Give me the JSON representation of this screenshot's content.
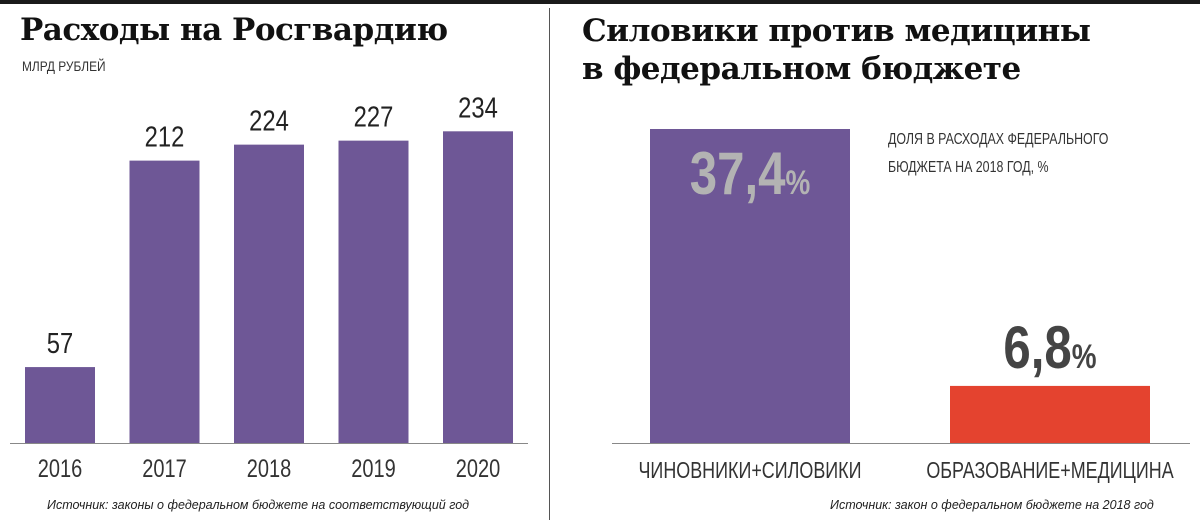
{
  "left": {
    "title": "Расходы на Росгвардию",
    "subtitle": "МЛРД РУБЛЕЙ",
    "source": "Источник: законы о федеральном бюджете на соответствующий год"
  },
  "right": {
    "title_line1": "Силовики против медицины",
    "title_line2": "в федеральном бюджете",
    "note_line1": "ДОЛЯ В РАСХОДАХ ФЕДЕРАЛЬНОГО",
    "note_line2": "БЮДЖЕТА НА 2018 ГОД, %",
    "source": "Источник: закон о федеральном бюджете на 2018 год"
  },
  "colors": {
    "purple": "#6e5796",
    "red": "#e4432f",
    "value_label_on_bar": "#b3b3b3",
    "value_label": "#444444"
  },
  "chart_data": [
    {
      "type": "bar",
      "title": "Расходы на Росгвардию",
      "ylabel": "МЛРД РУБЛЕЙ",
      "categories": [
        "2016",
        "2017",
        "2018",
        "2019",
        "2020"
      ],
      "values": [
        57,
        212,
        224,
        227,
        234
      ],
      "value_labels": [
        "57",
        "212",
        "224",
        "227",
        "234"
      ],
      "ylim": [
        0,
        250
      ],
      "grid": false
    },
    {
      "type": "bar",
      "title": "Силовики против медицины в федеральном бюджете",
      "categories": [
        "ЧИНОВНИКИ+СИЛОВИКИ",
        "ОБРАЗОВАНИЕ+МЕДИЦИНА"
      ],
      "values": [
        37.4,
        6.8
      ],
      "value_labels": [
        {
          "num": "37,4",
          "unit": "%"
        },
        {
          "num": "6,8",
          "unit": "%"
        }
      ],
      "ylim": [
        0,
        40
      ],
      "grid": false
    }
  ]
}
